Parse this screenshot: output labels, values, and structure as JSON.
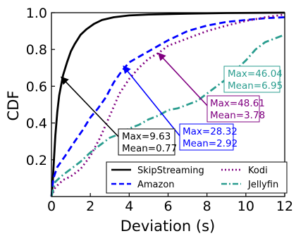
{
  "chart_data": {
    "type": "line",
    "xlabel": "Deviation (s)",
    "ylabel": "CDF",
    "xlim": [
      0,
      12
    ],
    "ylim": [
      0,
      1.0
    ],
    "xticks": [
      0,
      2,
      4,
      6,
      8,
      10,
      12
    ],
    "yticks": [
      0.2,
      0.4,
      0.6,
      0.8,
      1.0
    ],
    "ytick_labels": [
      "0.2",
      "0.4",
      "0.6",
      "0.8",
      "1.0"
    ],
    "legend_placement": "bottom-right",
    "series": [
      {
        "name": "SkipStreaming",
        "color": "#000000",
        "style": "solid",
        "points": [
          [
            0,
            0.0
          ],
          [
            0.05,
            0.05
          ],
          [
            0.1,
            0.15
          ],
          [
            0.2,
            0.33
          ],
          [
            0.3,
            0.46
          ],
          [
            0.4,
            0.55
          ],
          [
            0.6,
            0.66
          ],
          [
            0.8,
            0.73
          ],
          [
            1.0,
            0.79
          ],
          [
            1.2,
            0.83
          ],
          [
            1.5,
            0.88
          ],
          [
            1.8,
            0.91
          ],
          [
            2.2,
            0.94
          ],
          [
            2.6,
            0.96
          ],
          [
            3.2,
            0.975
          ],
          [
            4,
            0.985
          ],
          [
            5,
            0.99
          ],
          [
            7,
            0.995
          ],
          [
            9,
            0.998
          ],
          [
            12,
            1.0
          ]
        ]
      },
      {
        "name": "Amazon",
        "color": "#0000ff",
        "style": "dashed",
        "points": [
          [
            0,
            0.0
          ],
          [
            0.1,
            0.1
          ],
          [
            0.3,
            0.16
          ],
          [
            0.7,
            0.22
          ],
          [
            1.2,
            0.3
          ],
          [
            1.6,
            0.36
          ],
          [
            2,
            0.43
          ],
          [
            2.4,
            0.48
          ],
          [
            2.8,
            0.54
          ],
          [
            3.2,
            0.62
          ],
          [
            3.6,
            0.68
          ],
          [
            4.0,
            0.73
          ],
          [
            4.5,
            0.76
          ],
          [
            5,
            0.79
          ],
          [
            5.5,
            0.82
          ],
          [
            6,
            0.85
          ],
          [
            7,
            0.9
          ],
          [
            8,
            0.93
          ],
          [
            9,
            0.95
          ],
          [
            10,
            0.96
          ],
          [
            11,
            0.97
          ],
          [
            12,
            0.975
          ]
        ]
      },
      {
        "name": "Kodi",
        "color": "#800080",
        "style": "dotted",
        "points": [
          [
            0,
            0.0
          ],
          [
            0.2,
            0.05
          ],
          [
            0.6,
            0.09
          ],
          [
            1,
            0.11
          ],
          [
            1.5,
            0.15
          ],
          [
            2,
            0.22
          ],
          [
            2.5,
            0.32
          ],
          [
            3,
            0.44
          ],
          [
            3.5,
            0.56
          ],
          [
            4,
            0.64
          ],
          [
            4.5,
            0.7
          ],
          [
            5,
            0.75
          ],
          [
            5.5,
            0.78
          ],
          [
            6,
            0.82
          ],
          [
            7,
            0.86
          ],
          [
            8,
            0.9
          ],
          [
            9,
            0.93
          ],
          [
            10,
            0.955
          ],
          [
            11,
            0.975
          ],
          [
            12,
            0.99
          ]
        ]
      },
      {
        "name": "Jellyfin",
        "color": "#2a9d8f",
        "style": "dashdot",
        "points": [
          [
            0,
            0.0
          ],
          [
            0.2,
            0.08
          ],
          [
            0.5,
            0.11
          ],
          [
            1,
            0.15
          ],
          [
            1.5,
            0.19
          ],
          [
            2,
            0.24
          ],
          [
            2.5,
            0.28
          ],
          [
            3,
            0.32
          ],
          [
            3.5,
            0.34
          ],
          [
            4,
            0.37
          ],
          [
            4.5,
            0.39
          ],
          [
            5,
            0.42
          ],
          [
            5.5,
            0.44
          ],
          [
            6,
            0.47
          ],
          [
            6.5,
            0.48
          ],
          [
            7,
            0.5
          ],
          [
            7.5,
            0.52
          ],
          [
            8,
            0.56
          ],
          [
            8.5,
            0.6
          ],
          [
            9,
            0.64
          ],
          [
            9.5,
            0.69
          ],
          [
            10,
            0.74
          ],
          [
            10.5,
            0.8
          ],
          [
            11,
            0.84
          ],
          [
            11.5,
            0.86
          ],
          [
            12,
            0.88
          ]
        ]
      }
    ],
    "annotations": [
      {
        "line1": "Max=9.63",
        "line2": "Mean=0.77",
        "color": "#000000",
        "point": [
          0.5,
          0.65
        ]
      },
      {
        "line1": "Max=28.32",
        "line2": "Mean=2.92",
        "color": "#0000ff",
        "point": [
          3.7,
          0.71
        ]
      },
      {
        "line1": "Max=48.61",
        "line2": "Mean=3.78",
        "color": "#800080",
        "point": [
          5.5,
          0.78
        ]
      },
      {
        "line1": "Max=46.04",
        "line2": "Mean=6.95",
        "color": "#2a9d8f",
        "point": [
          0,
          0
        ]
      }
    ]
  }
}
